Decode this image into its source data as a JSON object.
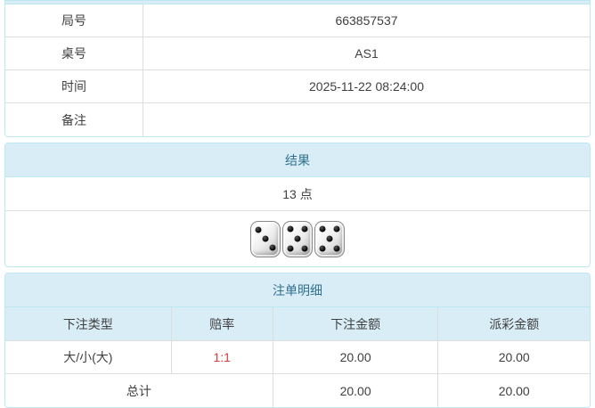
{
  "colors": {
    "panel_border": "#bce8f1",
    "header_bg": "#d9edf7",
    "header_text": "#31708f",
    "divider": "#dddddd",
    "text": "#404040",
    "odds_red": "#e4393c",
    "page_bg": "#ffffff"
  },
  "info_table": {
    "rows": [
      {
        "label": "局号",
        "value": "663857537"
      },
      {
        "label": "桌号",
        "value": "AS1"
      },
      {
        "label": "时间",
        "value": "2025-11-22 08:24:00"
      },
      {
        "label": "备注",
        "value": ""
      }
    ]
  },
  "result_panel": {
    "title": "结果",
    "points": "13 点",
    "dice": [
      3,
      5,
      5
    ]
  },
  "bets_panel": {
    "title": "注单明细",
    "columns": [
      "下注类型",
      "赔率",
      "下注金额",
      "派彩金额"
    ],
    "rows": [
      {
        "type": "大/小(大)",
        "odds": "1:1",
        "bet": "20.00",
        "payout": "20.00"
      }
    ],
    "total": {
      "label": "总计",
      "bet": "20.00",
      "payout": "20.00"
    }
  }
}
